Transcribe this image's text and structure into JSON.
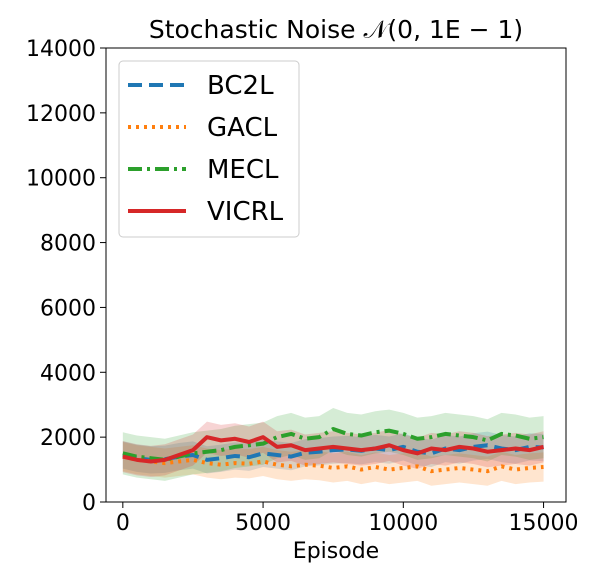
{
  "chart_data": {
    "type": "line",
    "title": "Stochastic Noise 𝒩(0, 1E − 1)",
    "xlabel": "Episode",
    "ylabel": "",
    "xlim": [
      -600,
      15800
    ],
    "ylim": [
      0,
      14000
    ],
    "xticks": [
      0,
      5000,
      10000,
      15000
    ],
    "xtick_labels": [
      "0",
      "5000",
      "10000",
      "15000"
    ],
    "yticks": [
      0,
      2000,
      4000,
      6000,
      8000,
      10000,
      12000,
      14000
    ],
    "ytick_labels": [
      "0",
      "2000",
      "4000",
      "6000",
      "8000",
      "10000",
      "12000",
      "14000"
    ],
    "legend_position": "top-left",
    "x": [
      0,
      500,
      1000,
      1500,
      2000,
      2500,
      3000,
      3500,
      4000,
      4500,
      5000,
      5500,
      6000,
      6500,
      7000,
      7500,
      8000,
      8500,
      9000,
      9500,
      10000,
      10500,
      11000,
      11500,
      12000,
      12500,
      13000,
      13500,
      14000,
      14500,
      15000
    ],
    "series": [
      {
        "name": "BC2L",
        "color": "#1f77b4",
        "style": "dashed",
        "values": [
          1450,
          1350,
          1300,
          1320,
          1400,
          1450,
          1300,
          1350,
          1420,
          1380,
          1500,
          1450,
          1400,
          1520,
          1550,
          1600,
          1620,
          1580,
          1650,
          1600,
          1700,
          1550,
          1500,
          1650,
          1600,
          1700,
          1750,
          1650,
          1600,
          1700,
          1680
        ],
        "band": 420
      },
      {
        "name": "GACL",
        "color": "#ff7f0e",
        "style": "dotted",
        "values": [
          1400,
          1300,
          1250,
          1200,
          1250,
          1300,
          1200,
          1150,
          1200,
          1180,
          1250,
          1150,
          1100,
          1150,
          1120,
          1050,
          1100,
          1000,
          1080,
          1000,
          1050,
          1100,
          950,
          1000,
          1050,
          1000,
          950,
          1100,
          1000,
          1050,
          1080
        ],
        "band": 450
      },
      {
        "name": "MECL",
        "color": "#2ca02c",
        "style": "dashdot",
        "values": [
          1500,
          1400,
          1350,
          1300,
          1400,
          1500,
          1550,
          1600,
          1700,
          1750,
          1800,
          2000,
          2100,
          1950,
          2000,
          2250,
          2100,
          2050,
          2150,
          2200,
          2100,
          1950,
          2000,
          2100,
          2050,
          2000,
          1900,
          2100,
          2050,
          1950,
          2000
        ],
        "band": 650
      },
      {
        "name": "VICRL",
        "color": "#d62728",
        "style": "solid",
        "values": [
          1400,
          1300,
          1250,
          1300,
          1450,
          1600,
          2000,
          1900,
          1950,
          1850,
          2000,
          1700,
          1750,
          1600,
          1650,
          1700,
          1650,
          1600,
          1650,
          1750,
          1600,
          1500,
          1650,
          1600,
          1700,
          1650,
          1550,
          1600,
          1650,
          1600,
          1700
        ],
        "band": 480
      }
    ]
  }
}
